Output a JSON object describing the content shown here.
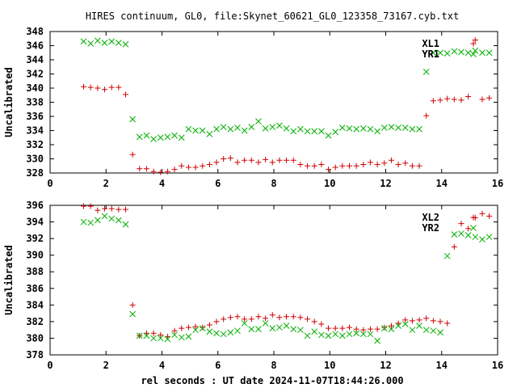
{
  "title": "HIRES continuum, GL0, file:Skynet_60621_GL0_123358_73167.cyb.txt",
  "xlabel": "rel seconds : UT date 2024-11-07T18:44:26.000",
  "colors": {
    "red_series": "#d00000",
    "green_series": "#00b000",
    "frame": "#000000"
  },
  "chart_data": [
    {
      "type": "scatter",
      "ylabel": "Uncalibrated",
      "xlim": [
        0,
        16
      ],
      "ylim": [
        328,
        348
      ],
      "xticks": [
        0,
        2,
        4,
        6,
        8,
        10,
        12,
        14,
        16
      ],
      "yticks": [
        328,
        330,
        332,
        334,
        336,
        338,
        340,
        342,
        344,
        346,
        348
      ],
      "legend_position": "top-right",
      "grid": false,
      "series": [
        {
          "name": "XL1",
          "marker": "plus",
          "color": "#d00000",
          "x": [
            1.2,
            1.45,
            1.7,
            1.95,
            2.2,
            2.45,
            2.7,
            2.95,
            3.2,
            3.45,
            3.7,
            3.95,
            4.2,
            4.45,
            4.7,
            4.95,
            5.2,
            5.45,
            5.7,
            5.95,
            6.2,
            6.45,
            6.7,
            6.95,
            7.2,
            7.45,
            7.7,
            7.95,
            8.2,
            8.45,
            8.7,
            8.95,
            9.2,
            9.45,
            9.7,
            9.95,
            10.2,
            10.45,
            10.7,
            10.95,
            11.2,
            11.45,
            11.7,
            11.95,
            12.2,
            12.45,
            12.7,
            12.95,
            13.2,
            13.45,
            13.7,
            13.95,
            14.2,
            14.45,
            14.7,
            14.95,
            15.2,
            15.45,
            15.7
          ],
          "y": [
            340.2,
            340.1,
            340.0,
            339.8,
            340.1,
            340.1,
            339.1,
            330.6,
            328.6,
            328.6,
            328.2,
            328.1,
            328.2,
            328.5,
            329.0,
            328.8,
            328.8,
            329.0,
            329.2,
            329.5,
            330.0,
            330.1,
            329.5,
            329.8,
            329.8,
            329.5,
            329.9,
            329.5,
            329.8,
            329.8,
            329.8,
            329.2,
            329.0,
            329.0,
            329.2,
            328.5,
            328.8,
            329.0,
            329.0,
            329.0,
            329.2,
            329.5,
            329.2,
            329.4,
            329.8,
            329.2,
            329.4,
            329.0,
            329.0,
            336.1,
            338.2,
            338.3,
            338.5,
            338.4,
            338.3,
            338.8,
            346.8,
            338.4,
            338.6
          ],
          "note_x_order": "plotted at same x positions as markers"
        },
        {
          "name": "YR1",
          "marker": "cross",
          "color": "#00b000",
          "x": [
            1.2,
            1.45,
            1.7,
            1.95,
            2.2,
            2.45,
            2.7,
            2.95,
            3.2,
            3.45,
            3.7,
            3.95,
            4.2,
            4.45,
            4.7,
            4.95,
            5.2,
            5.45,
            5.7,
            5.95,
            6.2,
            6.45,
            6.7,
            6.95,
            7.2,
            7.45,
            7.7,
            7.95,
            8.2,
            8.45,
            8.7,
            8.95,
            9.2,
            9.45,
            9.7,
            9.95,
            10.2,
            10.45,
            10.7,
            10.95,
            11.2,
            11.45,
            11.7,
            11.95,
            12.2,
            12.45,
            12.7,
            12.95,
            13.2,
            13.45,
            13.7,
            13.95,
            14.2,
            14.45,
            14.7,
            14.95,
            15.2,
            15.45,
            15.7
          ],
          "y": [
            346.6,
            346.3,
            346.7,
            346.4,
            346.6,
            346.4,
            346.2,
            335.6,
            333.1,
            333.3,
            332.8,
            333.0,
            333.1,
            333.3,
            333.0,
            334.2,
            334.0,
            334.0,
            333.5,
            334.2,
            334.5,
            334.2,
            334.4,
            334.0,
            334.5,
            335.3,
            334.3,
            334.5,
            334.7,
            334.3,
            333.9,
            334.2,
            333.9,
            333.9,
            333.9,
            333.3,
            333.8,
            334.4,
            334.3,
            334.2,
            334.3,
            334.2,
            333.9,
            334.4,
            334.5,
            334.4,
            334.4,
            334.2,
            334.2,
            342.3,
            345.0,
            345.0,
            344.9,
            345.2,
            345.1,
            345.0,
            345.3,
            345.0,
            345.0
          ]
        }
      ]
    },
    {
      "type": "scatter",
      "ylabel": "Uncalibrated",
      "xlim": [
        0,
        16
      ],
      "ylim": [
        378,
        396
      ],
      "xticks": [
        0,
        2,
        4,
        6,
        8,
        10,
        12,
        14,
        16
      ],
      "yticks": [
        378,
        380,
        382,
        384,
        386,
        388,
        390,
        392,
        394,
        396
      ],
      "legend_position": "top-right",
      "grid": false,
      "series": [
        {
          "name": "XL2",
          "marker": "plus",
          "color": "#d00000",
          "x": [
            1.2,
            1.45,
            1.7,
            1.95,
            2.2,
            2.45,
            2.7,
            2.95,
            3.2,
            3.45,
            3.7,
            3.95,
            4.2,
            4.45,
            4.7,
            4.95,
            5.2,
            5.45,
            5.7,
            5.95,
            6.2,
            6.45,
            6.7,
            6.95,
            7.2,
            7.45,
            7.7,
            7.95,
            8.2,
            8.45,
            8.7,
            8.95,
            9.2,
            9.45,
            9.7,
            9.95,
            10.2,
            10.45,
            10.7,
            10.95,
            11.2,
            11.45,
            11.7,
            11.95,
            12.2,
            12.45,
            12.7,
            12.95,
            13.2,
            13.45,
            13.7,
            13.95,
            14.2,
            14.45,
            14.7,
            14.95,
            15.2,
            15.45,
            15.7
          ],
          "y": [
            395.9,
            395.9,
            395.4,
            395.6,
            395.6,
            395.5,
            395.5,
            384.0,
            380.3,
            380.6,
            380.6,
            380.4,
            380.2,
            380.9,
            381.2,
            381.3,
            381.4,
            381.3,
            381.6,
            382.0,
            382.3,
            382.5,
            382.6,
            382.3,
            382.3,
            382.6,
            382.4,
            382.8,
            382.5,
            382.6,
            382.6,
            382.5,
            382.3,
            382.0,
            381.7,
            381.2,
            381.2,
            381.2,
            381.3,
            381.1,
            381.0,
            381.1,
            381.1,
            381.3,
            381.5,
            381.8,
            382.2,
            382.1,
            382.2,
            382.4,
            382.1,
            382.0,
            381.8,
            391.0,
            393.8,
            393.2,
            394.5,
            395.0,
            394.7
          ],
          "note_x_order": "plotted at same x positions as markers"
        },
        {
          "name": "YR2",
          "marker": "cross",
          "color": "#00b000",
          "x": [
            1.2,
            1.45,
            1.7,
            1.95,
            2.2,
            2.45,
            2.7,
            2.95,
            3.2,
            3.45,
            3.7,
            3.95,
            4.2,
            4.45,
            4.7,
            4.95,
            5.2,
            5.45,
            5.7,
            5.95,
            6.2,
            6.45,
            6.7,
            6.95,
            7.2,
            7.45,
            7.7,
            7.95,
            8.2,
            8.45,
            8.7,
            8.95,
            9.2,
            9.45,
            9.7,
            9.95,
            10.2,
            10.45,
            10.7,
            10.95,
            11.2,
            11.45,
            11.7,
            11.95,
            12.2,
            12.45,
            12.7,
            12.95,
            13.2,
            13.45,
            13.7,
            13.95,
            14.2,
            14.45,
            14.7,
            14.95,
            15.2,
            15.45,
            15.7
          ],
          "y": [
            394.0,
            393.9,
            394.2,
            394.7,
            394.4,
            394.2,
            393.7,
            382.9,
            380.3,
            380.3,
            380.0,
            380.0,
            379.9,
            380.4,
            380.1,
            380.2,
            381.0,
            381.2,
            380.8,
            380.6,
            380.5,
            380.7,
            380.9,
            381.8,
            381.1,
            381.1,
            381.8,
            381.2,
            381.3,
            381.5,
            381.1,
            381.0,
            380.3,
            380.8,
            380.4,
            380.3,
            380.5,
            380.3,
            380.5,
            380.6,
            380.5,
            380.5,
            379.7,
            381.2,
            381.1,
            381.5,
            381.7,
            381.0,
            381.5,
            381.0,
            380.9,
            380.7,
            389.9,
            392.5,
            392.6,
            392.4,
            392.2,
            391.9,
            392.2
          ]
        }
      ]
    }
  ]
}
